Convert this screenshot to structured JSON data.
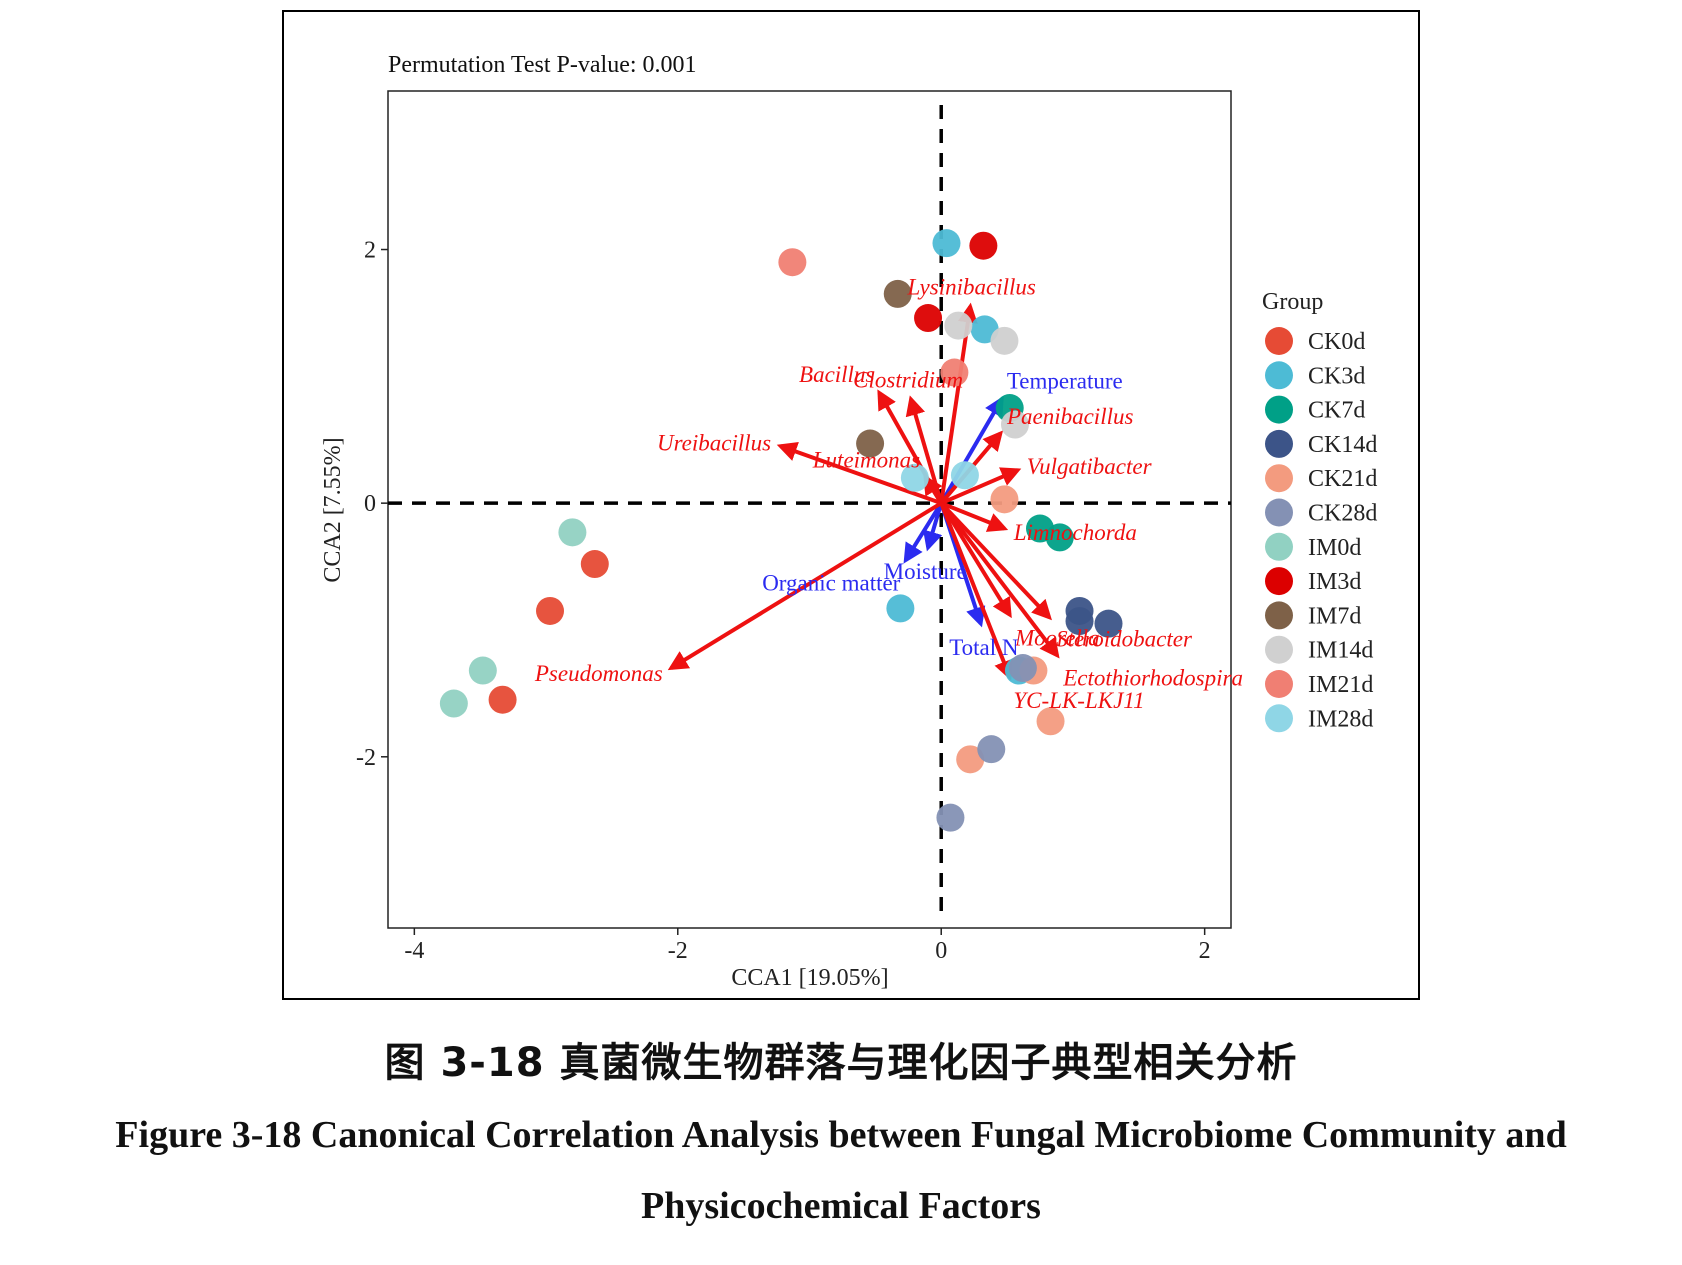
{
  "figure": {
    "caption_cn": "图 3-18 真菌微生物群落与理化因子典型相关分析",
    "caption_en_line1": "Figure 3-18 Canonical Correlation Analysis between Fungal Microbiome Community and",
    "caption_en_line2": "Physicochemical Factors"
  },
  "chart_data": {
    "type": "scatter",
    "subtitle": "Permutation Test P-value: 0.001",
    "xlabel": "CCA1 [19.05%]",
    "ylabel": "CCA2 [7.55%]",
    "xlim": [
      -4.2,
      2.2
    ],
    "ylim": [
      -3.35,
      3.25
    ],
    "xticks": [
      -4,
      -2,
      0,
      2
    ],
    "yticks": [
      -2,
      0,
      2
    ],
    "reference_lines": "dashed lines at x=0 and y=0",
    "legend_title": "Group",
    "legend_position": "right",
    "groups": [
      {
        "name": "CK0d",
        "color": "#e64b35"
      },
      {
        "name": "CK3d",
        "color": "#4dbbd5"
      },
      {
        "name": "CK7d",
        "color": "#00a087"
      },
      {
        "name": "CK14d",
        "color": "#3c5488"
      },
      {
        "name": "CK21d",
        "color": "#f39b7f"
      },
      {
        "name": "CK28d",
        "color": "#8491b4"
      },
      {
        "name": "IM0d",
        "color": "#91d1c2"
      },
      {
        "name": "IM3d",
        "color": "#dc0000"
      },
      {
        "name": "IM7d",
        "color": "#7e6148"
      },
      {
        "name": "IM14d",
        "color": "#d0d0d0"
      },
      {
        "name": "IM21d",
        "color": "#f07f73"
      },
      {
        "name": "IM28d",
        "color": "#8fd6e6"
      }
    ],
    "points": [
      {
        "group": "CK0d",
        "x": -2.63,
        "y": -0.48
      },
      {
        "group": "CK0d",
        "x": -2.97,
        "y": -0.85
      },
      {
        "group": "CK0d",
        "x": -3.33,
        "y": -1.55
      },
      {
        "group": "CK3d",
        "x": 0.04,
        "y": 2.05
      },
      {
        "group": "CK3d",
        "x": 0.33,
        "y": 1.37
      },
      {
        "group": "CK3d",
        "x": -0.31,
        "y": -0.83
      },
      {
        "group": "CK3d",
        "x": 0.59,
        "y": -1.32
      },
      {
        "group": "CK7d",
        "x": 0.52,
        "y": 0.75
      },
      {
        "group": "CK7d",
        "x": 0.75,
        "y": -0.2
      },
      {
        "group": "CK7d",
        "x": 0.9,
        "y": -0.27
      },
      {
        "group": "CK14d",
        "x": 1.05,
        "y": -0.85
      },
      {
        "group": "CK14d",
        "x": 1.05,
        "y": -0.93
      },
      {
        "group": "CK14d",
        "x": 1.27,
        "y": -0.95
      },
      {
        "group": "CK21d",
        "x": 0.48,
        "y": 0.03
      },
      {
        "group": "CK21d",
        "x": 0.7,
        "y": -1.32
      },
      {
        "group": "CK21d",
        "x": 0.83,
        "y": -1.72
      },
      {
        "group": "CK21d",
        "x": 0.22,
        "y": -2.02
      },
      {
        "group": "CK28d",
        "x": 0.38,
        "y": -1.94
      },
      {
        "group": "CK28d",
        "x": 0.07,
        "y": -2.48
      },
      {
        "group": "CK28d",
        "x": 0.62,
        "y": -1.3
      },
      {
        "group": "IM0d",
        "x": -2.8,
        "y": -0.23
      },
      {
        "group": "IM0d",
        "x": -3.48,
        "y": -1.32
      },
      {
        "group": "IM0d",
        "x": -3.7,
        "y": -1.58
      },
      {
        "group": "IM3d",
        "x": 0.32,
        "y": 2.03
      },
      {
        "group": "IM3d",
        "x": -0.1,
        "y": 1.46
      },
      {
        "group": "IM7d",
        "x": -0.33,
        "y": 1.65
      },
      {
        "group": "IM7d",
        "x": -0.54,
        "y": 0.47
      },
      {
        "group": "IM14d",
        "x": 0.13,
        "y": 1.4
      },
      {
        "group": "IM14d",
        "x": 0.48,
        "y": 1.28
      },
      {
        "group": "IM14d",
        "x": 0.56,
        "y": 0.62
      },
      {
        "group": "IM21d",
        "x": -1.13,
        "y": 1.9
      },
      {
        "group": "IM21d",
        "x": 0.1,
        "y": 1.03
      },
      {
        "group": "IM28d",
        "x": 0.18,
        "y": 0.22
      },
      {
        "group": "IM28d",
        "x": -0.2,
        "y": 0.2
      }
    ],
    "species_arrows": [
      {
        "label": "Lysinibacillus",
        "x": 0.22,
        "y": 1.55
      },
      {
        "label": "Bacillus",
        "x": -0.47,
        "y": 0.87
      },
      {
        "label": "Clostridium",
        "x": -0.23,
        "y": 0.82
      },
      {
        "label": "Ureibacillus",
        "x": -1.22,
        "y": 0.45
      },
      {
        "label": "Luteimonas",
        "x": -0.12,
        "y": 0.2
      },
      {
        "label": "Paenibacillus",
        "x": 0.45,
        "y": 0.55
      },
      {
        "label": "Vulgatibacter",
        "x": 0.58,
        "y": 0.26
      },
      {
        "label": "Limnochorda",
        "x": 0.48,
        "y": -0.2
      },
      {
        "label": "Moorella",
        "x": 0.52,
        "y": -0.88
      },
      {
        "label": "Steroidobacter",
        "x": 0.82,
        "y": -0.9
      },
      {
        "label": "Ectothiorhodospira",
        "x": 0.88,
        "y": -1.2
      },
      {
        "label": "YC-LK-LKJ11",
        "x": 0.52,
        "y": -1.37
      },
      {
        "label": "Pseudomonas",
        "x": -2.05,
        "y": -1.3
      }
    ],
    "environment_arrows": [
      {
        "label": "Temperature",
        "x": 0.46,
        "y": 0.82
      },
      {
        "label": "Organic matter",
        "x": -0.27,
        "y": -0.45
      },
      {
        "label": "Moisture",
        "x": -0.1,
        "y": -0.35
      },
      {
        "label": "Total N",
        "x": 0.3,
        "y": -0.95
      }
    ]
  }
}
